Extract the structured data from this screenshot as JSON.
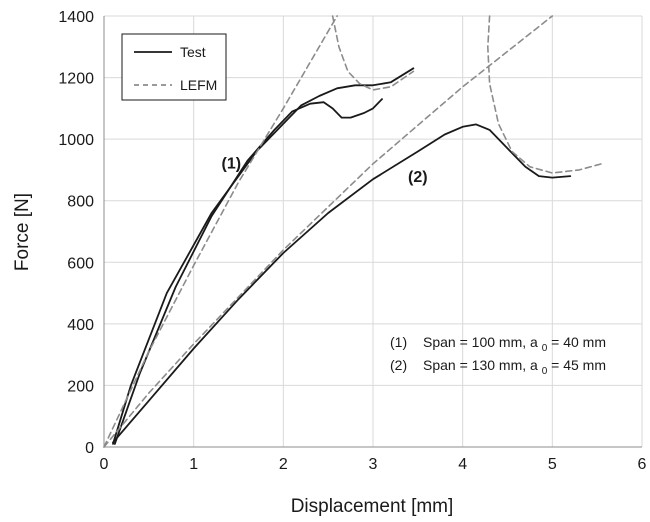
{
  "chart_data": {
    "type": "line",
    "title": "",
    "xlabel": "Displacement [mm]",
    "ylabel": "Force [N]",
    "xlim": [
      0,
      6
    ],
    "ylim": [
      0,
      1400
    ],
    "xticks": [
      "0",
      "1",
      "2",
      "3",
      "4",
      "5",
      "6"
    ],
    "yticks": [
      "0",
      "200",
      "400",
      "600",
      "800",
      "1000",
      "1200",
      "1400"
    ],
    "grid": true,
    "legend": {
      "position": "top-left",
      "entries": [
        {
          "label": "Test",
          "style": "solid",
          "color": "#1a1a1a"
        },
        {
          "label": "LEFM",
          "style": "dashed",
          "color": "#8c8c8c"
        }
      ]
    },
    "curve_labels": [
      {
        "text": "(1)",
        "x": 1.42,
        "y": 905
      },
      {
        "text": "(2)",
        "x": 3.5,
        "y": 860
      }
    ],
    "notes": [
      {
        "marker": "(1)",
        "text": "Span = 100 mm, a",
        "subscript": "0",
        "suffix": " = 40 mm"
      },
      {
        "marker": "(2)",
        "text": "Span = 130 mm, a",
        "subscript": "0",
        "suffix": " = 45 mm"
      }
    ],
    "series": [
      {
        "name": "Test",
        "style": "solid",
        "color": "#1a1a1a",
        "points": [
          [
            0.1,
            10
          ],
          [
            0.3,
            200
          ],
          [
            0.7,
            500
          ],
          [
            1.2,
            760
          ],
          [
            1.7,
            960
          ],
          [
            2.0,
            1050
          ],
          [
            2.2,
            1110
          ],
          [
            2.4,
            1140
          ],
          [
            2.6,
            1165
          ],
          [
            2.8,
            1175
          ],
          [
            3.0,
            1175
          ],
          [
            3.2,
            1185
          ],
          [
            3.45,
            1230
          ]
        ]
      },
      {
        "name": "Test",
        "style": "solid",
        "color": "#1a1a1a",
        "points": [
          [
            0.12,
            10
          ],
          [
            0.4,
            240
          ],
          [
            0.8,
            520
          ],
          [
            1.2,
            750
          ],
          [
            1.6,
            930
          ],
          [
            1.9,
            1030
          ],
          [
            2.1,
            1090
          ],
          [
            2.3,
            1115
          ],
          [
            2.45,
            1120
          ],
          [
            2.55,
            1100
          ],
          [
            2.65,
            1070
          ],
          [
            2.75,
            1070
          ],
          [
            2.9,
            1085
          ],
          [
            3.0,
            1100
          ],
          [
            3.1,
            1130
          ]
        ]
      },
      {
        "name": "Test",
        "style": "solid",
        "color": "#1a1a1a",
        "points": [
          [
            0.1,
            15
          ],
          [
            0.5,
            150
          ],
          [
            1.0,
            320
          ],
          [
            1.5,
            480
          ],
          [
            2.0,
            630
          ],
          [
            2.5,
            760
          ],
          [
            3.0,
            870
          ],
          [
            3.5,
            960
          ],
          [
            3.8,
            1015
          ],
          [
            4.0,
            1040
          ],
          [
            4.15,
            1048
          ],
          [
            4.3,
            1030
          ],
          [
            4.5,
            970
          ],
          [
            4.7,
            910
          ],
          [
            4.85,
            880
          ],
          [
            5.0,
            875
          ],
          [
            5.2,
            880
          ]
        ]
      },
      {
        "name": "LEFM",
        "style": "dashed",
        "color": "#8c8c8c",
        "points": [
          [
            0.0,
            0
          ],
          [
            0.5,
            310
          ],
          [
            1.0,
            590
          ],
          [
            1.5,
            860
          ],
          [
            2.0,
            1100
          ],
          [
            2.3,
            1250
          ],
          [
            2.6,
            1400
          ]
        ]
      },
      {
        "name": "LEFM",
        "style": "dashed",
        "color": "#8c8c8c",
        "points": [
          [
            2.55,
            1400
          ],
          [
            2.62,
            1300
          ],
          [
            2.72,
            1220
          ],
          [
            2.85,
            1180
          ],
          [
            3.0,
            1160
          ],
          [
            3.2,
            1170
          ],
          [
            3.45,
            1220
          ]
        ]
      },
      {
        "name": "LEFM",
        "style": "dashed",
        "color": "#8c8c8c",
        "points": [
          [
            0.0,
            0
          ],
          [
            0.5,
            175
          ],
          [
            1.0,
            335
          ],
          [
            2.0,
            640
          ],
          [
            3.0,
            920
          ],
          [
            4.0,
            1170
          ],
          [
            5.0,
            1400
          ]
        ]
      },
      {
        "name": "LEFM",
        "style": "dashed",
        "color": "#8c8c8c",
        "points": [
          [
            4.3,
            1400
          ],
          [
            4.28,
            1300
          ],
          [
            4.3,
            1180
          ],
          [
            4.4,
            1050
          ],
          [
            4.55,
            960
          ],
          [
            4.75,
            910
          ],
          [
            5.0,
            890
          ],
          [
            5.3,
            900
          ],
          [
            5.55,
            920
          ]
        ]
      }
    ]
  }
}
